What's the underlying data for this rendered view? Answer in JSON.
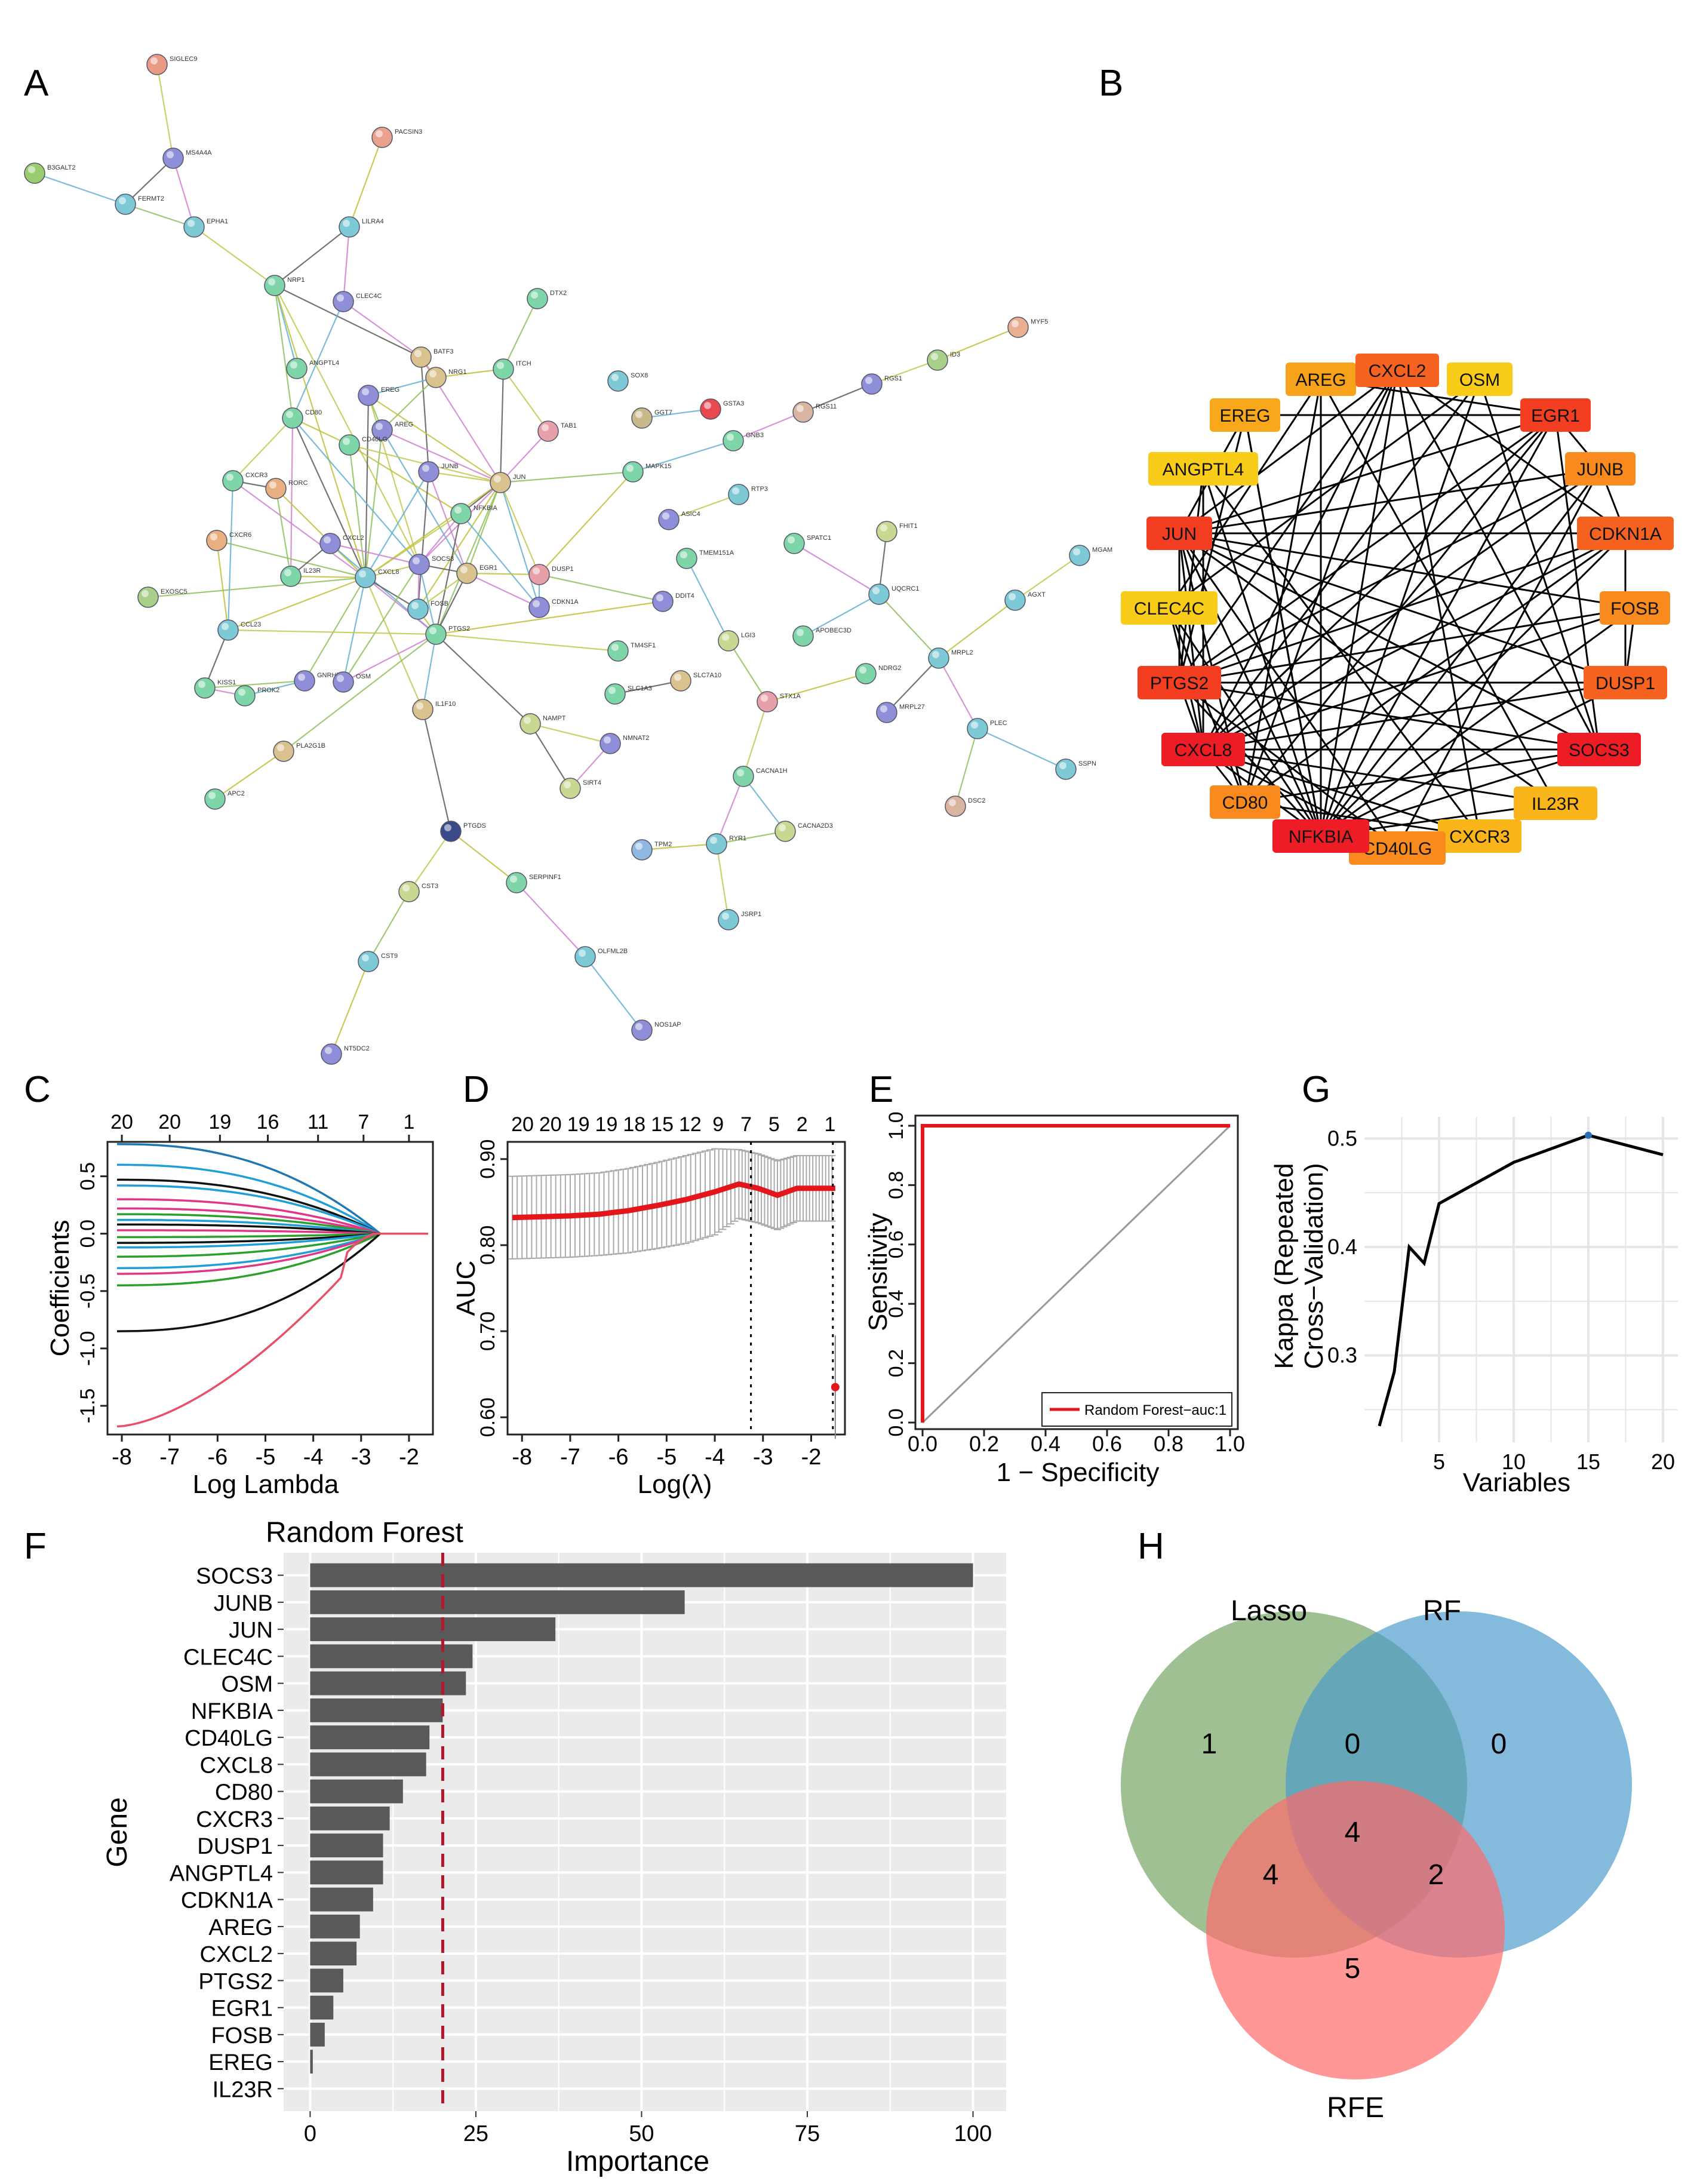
{
  "panels": {
    "A": {
      "letter": "A",
      "nodes": [
        {
          "id": "SIGLEC9",
          "c": "#e89a86"
        },
        {
          "id": "PACSIN3",
          "c": "#e8a28e"
        },
        {
          "id": "MS4A4A",
          "c": "#8f8ed8"
        },
        {
          "id": "B3GALT2",
          "c": "#9acd6f"
        },
        {
          "id": "FERMT2",
          "c": "#7ec9d6"
        },
        {
          "id": "EPHA1",
          "c": "#7ec9d6"
        },
        {
          "id": "LILRA4",
          "c": "#7ec9d6"
        },
        {
          "id": "NRP1",
          "c": "#7ed6a8"
        },
        {
          "id": "CLEC4C",
          "c": "#8f8ed8"
        },
        {
          "id": "DTX2",
          "c": "#7ed6a8"
        },
        {
          "id": "MYF5",
          "c": "#e8b090"
        },
        {
          "id": "BATF3",
          "c": "#d9c28e"
        },
        {
          "id": "ANGPTL4",
          "c": "#7ed6a8"
        },
        {
          "id": "ID3",
          "c": "#a8d08a"
        },
        {
          "id": "NRG1",
          "c": "#d9c28e"
        },
        {
          "id": "ITCH",
          "c": "#7ed6a8"
        },
        {
          "id": "SOX8",
          "c": "#7ec9d6"
        },
        {
          "id": "EREG",
          "c": "#8f8ed8"
        },
        {
          "id": "RGS1",
          "c": "#8f8ed8"
        },
        {
          "id": "GSTA3",
          "c": "#e84850"
        },
        {
          "id": "GGT7",
          "c": "#c8b88a"
        },
        {
          "id": "CD80",
          "c": "#7ed6a8"
        },
        {
          "id": "TAB1",
          "c": "#e8a0a8"
        },
        {
          "id": "RGS11",
          "c": "#d9b4a0"
        },
        {
          "id": "AREG",
          "c": "#8f8ed8"
        },
        {
          "id": "CD40LG",
          "c": "#7ed6a8"
        },
        {
          "id": "GNB3",
          "c": "#7ed6a8"
        },
        {
          "id": "CXCR3",
          "c": "#7ed6a8"
        },
        {
          "id": "RORC",
          "c": "#e8b080"
        },
        {
          "id": "JUNB",
          "c": "#8f8ed8"
        },
        {
          "id": "JUN",
          "c": "#d9c28e"
        },
        {
          "id": "MAPK15",
          "c": "#7ed6a8"
        },
        {
          "id": "ASIC4",
          "c": "#8f8ed8"
        },
        {
          "id": "RTP3",
          "c": "#7ec9d6"
        },
        {
          "id": "FHIT1",
          "c": "#c8d890"
        },
        {
          "id": "CXCR6",
          "c": "#e8b080"
        },
        {
          "id": "CXCL2",
          "c": "#8f8ed8"
        },
        {
          "id": "NFKBIA",
          "c": "#7ed6a8"
        },
        {
          "id": "TMEM151A",
          "c": "#7ed6a8"
        },
        {
          "id": "SPATC1",
          "c": "#7ed6a8"
        },
        {
          "id": "MGAM",
          "c": "#7ec9d6"
        },
        {
          "id": "EXOSC5",
          "c": "#a8d08a"
        },
        {
          "id": "IL23R",
          "c": "#7ed6a8"
        },
        {
          "id": "CXCL8",
          "c": "#7ec9d6"
        },
        {
          "id": "SOCS3",
          "c": "#8f8ed8"
        },
        {
          "id": "EGR1",
          "c": "#d9c28e"
        },
        {
          "id": "DUSP1",
          "c": "#e8a0a8"
        },
        {
          "id": "UQCRC1",
          "c": "#7ec9d6"
        },
        {
          "id": "AGXT",
          "c": "#7ec9d6"
        },
        {
          "id": "DDIT4",
          "c": "#8f8ed8"
        },
        {
          "id": "FOSB",
          "c": "#7ec9d6"
        },
        {
          "id": "CDKN1A",
          "c": "#8f8ed8"
        },
        {
          "id": "CCL23",
          "c": "#7ec9d6"
        },
        {
          "id": "PTGS2",
          "c": "#7ed6a8"
        },
        {
          "id": "LGI3",
          "c": "#c8d890"
        },
        {
          "id": "APOBEC3D",
          "c": "#7ed6a8"
        },
        {
          "id": "MRPL2",
          "c": "#7ec9d6"
        },
        {
          "id": "KISS1",
          "c": "#7ed6a8"
        },
        {
          "id": "GNRHR",
          "c": "#8f8ed8"
        },
        {
          "id": "TM4SF1",
          "c": "#7ed6a8"
        },
        {
          "id": "NDRG2",
          "c": "#7ed6a8"
        },
        {
          "id": "OSM",
          "c": "#8f8ed8"
        },
        {
          "id": "PROK2",
          "c": "#7ed6a8"
        },
        {
          "id": "SLC1A3",
          "c": "#7ed6a8"
        },
        {
          "id": "SLC7A10",
          "c": "#d9c28e"
        },
        {
          "id": "STX1A",
          "c": "#e8a0a8"
        },
        {
          "id": "IL1F10",
          "c": "#d9c28e"
        },
        {
          "id": "MRPL27",
          "c": "#8f8ed8"
        },
        {
          "id": "PLEC",
          "c": "#7ec9d6"
        },
        {
          "id": "NAMPT",
          "c": "#c8d890"
        },
        {
          "id": "NMNAT2",
          "c": "#8f8ed8"
        },
        {
          "id": "PLA2G1B",
          "c": "#d9c28e"
        },
        {
          "id": "SSPN",
          "c": "#7ec9d6"
        },
        {
          "id": "SIRT4",
          "c": "#c8d890"
        },
        {
          "id": "CACNA1H",
          "c": "#7ed6a8"
        },
        {
          "id": "DSC2",
          "c": "#d9b4a0"
        },
        {
          "id": "APC2",
          "c": "#7ed6a8"
        },
        {
          "id": "CACNA2D3",
          "c": "#c8d890"
        },
        {
          "id": "PTGDS",
          "c": "#3a4a8a"
        },
        {
          "id": "TPM2",
          "c": "#8fb8e0"
        },
        {
          "id": "RYR1",
          "c": "#7ec9d6"
        },
        {
          "id": "SERPINF1",
          "c": "#7ed6a8"
        },
        {
          "id": "CST3",
          "c": "#c8d890"
        },
        {
          "id": "JSRP1",
          "c": "#7ec9d6"
        },
        {
          "id": "OLFML2B",
          "c": "#7ec9d6"
        },
        {
          "id": "CST9",
          "c": "#7ec9d6"
        },
        {
          "id": "NOS1AP",
          "c": "#8f8ed8"
        },
        {
          "id": "NT5DC2",
          "c": "#8f8ed8"
        }
      ]
    },
    "B": {
      "letter": "B",
      "genes": [
        {
          "name": "AREG",
          "c": "#f7a21b"
        },
        {
          "name": "CXCL2",
          "c": "#f6621f"
        },
        {
          "name": "OSM",
          "c": "#f9cc1a"
        },
        {
          "name": "EGR1",
          "c": "#f33e22"
        },
        {
          "name": "JUNB",
          "c": "#f88a1e"
        },
        {
          "name": "CDKN1A",
          "c": "#f6621f"
        },
        {
          "name": "FOSB",
          "c": "#f88a1e"
        },
        {
          "name": "DUSP1",
          "c": "#f6621f"
        },
        {
          "name": "SOCS3",
          "c": "#ee1c24"
        },
        {
          "name": "IL23R",
          "c": "#f9b51a"
        },
        {
          "name": "CXCR3",
          "c": "#f9b51a"
        },
        {
          "name": "CD40LG",
          "c": "#f88a1e"
        },
        {
          "name": "NFKBIA",
          "c": "#ee1c24"
        },
        {
          "name": "CD80",
          "c": "#f88a1e"
        },
        {
          "name": "CXCL8",
          "c": "#ee1c24"
        },
        {
          "name": "PTGS2",
          "c": "#f33e22"
        },
        {
          "name": "CLEC4C",
          "c": "#f9cc1a"
        },
        {
          "name": "JUN",
          "c": "#f33e22"
        },
        {
          "name": "ANGPTL4",
          "c": "#f9cc1a"
        },
        {
          "name": "EREG",
          "c": "#f9a81b"
        }
      ]
    },
    "C": {
      "letter": "C",
      "xlabel": "Log Lambda",
      "ylabel": "Coefficients",
      "xticks": [
        "-8",
        "-7",
        "-6",
        "-5",
        "-4",
        "-3",
        "-2"
      ],
      "yticks": [
        "-1.5",
        "-1.0",
        "-0.5",
        "0.0",
        "0.5"
      ],
      "topticks": [
        "20",
        "20",
        "19",
        "16",
        "11",
        "7",
        "1"
      ]
    },
    "D": {
      "letter": "D",
      "xlabel": "Log(λ)",
      "ylabel": "AUC",
      "xticks": [
        "-8",
        "-7",
        "-6",
        "-5",
        "-4",
        "-3",
        "-2"
      ],
      "yticks": [
        "0.60",
        "0.70",
        "0.80",
        "0.90"
      ],
      "topticks": [
        "20",
        "20",
        "19",
        "19",
        "18",
        "15",
        "12",
        "9",
        "7",
        "5",
        "2",
        "1"
      ]
    },
    "E": {
      "letter": "E",
      "xlabel": "1 − Specificity",
      "ylabel": "Sensitivity",
      "xticks": [
        "0.0",
        "0.2",
        "0.4",
        "0.6",
        "0.8",
        "1.0"
      ],
      "yticks": [
        "0.0",
        "0.2",
        "0.4",
        "0.6",
        "0.8",
        "1.0"
      ],
      "legend": "Random Forest−auc:1"
    },
    "G": {
      "letter": "G",
      "xlabel": "Variables",
      "ylabel1": "Kappa (Repeated",
      "ylabel2": "Cross−Validation)",
      "xticks": [
        "5",
        "10",
        "15",
        "20"
      ],
      "yticks": [
        "0.3",
        "0.4",
        "0.5"
      ]
    },
    "F": {
      "letter": "F",
      "title": "Random Forest",
      "xlabel": "Importance",
      "ylabel": "Gene",
      "xticks": [
        "0",
        "25",
        "50",
        "75",
        "100"
      ]
    },
    "H": {
      "letter": "H",
      "labels": [
        "Lasso",
        "RF",
        "RFE"
      ],
      "counts": {
        "lasso_only": "1",
        "lasso_rf": "0",
        "rf_only": "0",
        "center": "4",
        "lasso_rfe": "4",
        "rf_rfe": "2",
        "rfe_only": "5"
      }
    }
  },
  "chart_data": [
    {
      "panel": "C",
      "type": "line",
      "title": "",
      "xlabel": "Log Lambda",
      "ylabel": "Coefficients",
      "xlim": [
        -8.3,
        -1.5
      ],
      "ylim": [
        -1.75,
        0.8
      ],
      "convergence_x": -2.6,
      "series": [
        {
          "start": 0.78,
          "c": "#1f77b4"
        },
        {
          "start": 0.6,
          "c": "#1f9ed8"
        },
        {
          "start": 0.47,
          "c": "#111111"
        },
        {
          "start": 0.42,
          "c": "#1f9ed8"
        },
        {
          "start": 0.3,
          "c": "#e0368a"
        },
        {
          "start": 0.22,
          "c": "#e0368a"
        },
        {
          "start": 0.17,
          "c": "#2ca02c"
        },
        {
          "start": 0.12,
          "c": "#1f9ed8"
        },
        {
          "start": 0.08,
          "c": "#111111"
        },
        {
          "start": 0.03,
          "c": "#e0368a"
        },
        {
          "start": -0.03,
          "c": "#2ca02c"
        },
        {
          "start": -0.08,
          "c": "#111111"
        },
        {
          "start": -0.12,
          "c": "#1f9ed8"
        },
        {
          "start": -0.2,
          "c": "#2ca02c"
        },
        {
          "start": -0.3,
          "c": "#1f9ed8"
        },
        {
          "start": -0.35,
          "c": "#e0368a"
        },
        {
          "start": -0.45,
          "c": "#2ca02c"
        },
        {
          "start": -0.85,
          "c": "#111111"
        },
        {
          "start": -1.68,
          "c": "#e8506a"
        }
      ]
    },
    {
      "panel": "D",
      "type": "line",
      "xlabel": "Log(λ)",
      "ylabel": "AUC",
      "xlim": [
        -8.3,
        -1.3
      ],
      "ylim": [
        0.58,
        0.92
      ],
      "x": [
        -8.2,
        -7.6,
        -7.0,
        -6.4,
        -5.8,
        -5.2,
        -4.6,
        -4.0,
        -3.5,
        -3.1,
        -2.7,
        -2.3,
        -1.9,
        -1.5
      ],
      "y": [
        0.832,
        0.833,
        0.834,
        0.836,
        0.84,
        0.846,
        0.853,
        0.862,
        0.871,
        0.866,
        0.858,
        0.866,
        0.866,
        0.866
      ],
      "err": [
        0.048,
        0.048,
        0.048,
        0.048,
        0.049,
        0.05,
        0.051,
        0.05,
        0.04,
        0.04,
        0.04,
        0.038,
        0.038,
        0.038
      ],
      "vlines": [
        -3.25,
        -1.55
      ],
      "outlier": {
        "x": -1.5,
        "y": 0.635,
        "err": 0.06
      }
    },
    {
      "panel": "E",
      "type": "line",
      "xlabel": "1 − Specificity",
      "ylabel": "Sensitivity",
      "series": [
        {
          "name": "Random Forest−auc:1",
          "x": [
            0,
            0,
            1
          ],
          "y": [
            0,
            1,
            1
          ]
        }
      ]
    },
    {
      "panel": "G",
      "type": "line",
      "xlabel": "Variables",
      "ylabel": "Kappa (Repeated Cross−Validation)",
      "xlim": [
        0,
        21
      ],
      "ylim": [
        0.22,
        0.52
      ],
      "x": [
        1,
        2,
        3,
        4,
        5,
        10,
        15,
        20
      ],
      "y": [
        0.235,
        0.285,
        0.4,
        0.385,
        0.44,
        0.478,
        0.503,
        0.485
      ],
      "best_x": 15
    },
    {
      "panel": "F",
      "type": "bar",
      "title": "Random Forest",
      "xlabel": "Importance",
      "ylabel": "Gene",
      "xlim": [
        -4,
        105
      ],
      "threshold": 20,
      "categories": [
        "SOCS3",
        "JUNB",
        "JUN",
        "CLEC4C",
        "OSM",
        "NFKBIA",
        "CD40LG",
        "CXCL8",
        "CD80",
        "CXCR3",
        "DUSP1",
        "ANGPTL4",
        "CDKN1A",
        "AREG",
        "CXCL2",
        "PTGS2",
        "EGR1",
        "FOSB",
        "EREG",
        "IL23R"
      ],
      "values": [
        100,
        56.5,
        37,
        24.5,
        23.5,
        20,
        18,
        17.5,
        14,
        12,
        11,
        11,
        9.5,
        7.5,
        7,
        5,
        3.5,
        2.2,
        0.4,
        0
      ]
    }
  ]
}
